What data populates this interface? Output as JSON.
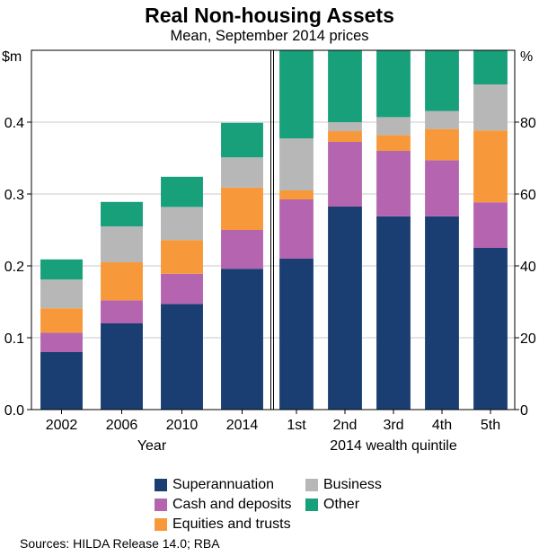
{
  "chart_data": {
    "type": "bar",
    "title": "Real Non-housing Assets",
    "subtitle": "Mean, September 2014 prices",
    "stacked": true,
    "colors": {
      "Superannuation": "#1a3e72",
      "Cash and deposits": "#b565b0",
      "Equities and trusts": "#f7993a",
      "Business": "#b7b7b7",
      "Other": "#18a07a"
    },
    "legend_order": [
      "Superannuation",
      "Business",
      "Cash and deposits",
      "Other",
      "Equities and trusts"
    ],
    "panels": [
      {
        "name": "year",
        "xlabel": "Year",
        "ylabel": "$m",
        "y_axis_side": "left",
        "ylim": [
          0,
          0.5
        ],
        "yticks": [
          "0.0",
          "0.1",
          "0.2",
          "0.3",
          "0.4"
        ],
        "categories": [
          "2002",
          "2006",
          "2010",
          "2014"
        ],
        "series": [
          {
            "name": "Superannuation",
            "values": [
              0.08,
              0.12,
              0.147,
              0.196
            ]
          },
          {
            "name": "Cash and deposits",
            "values": [
              0.027,
              0.032,
              0.042,
              0.054
            ]
          },
          {
            "name": "Equities and trusts",
            "values": [
              0.034,
              0.053,
              0.047,
              0.059
            ]
          },
          {
            "name": "Business",
            "values": [
              0.04,
              0.05,
              0.046,
              0.042
            ]
          },
          {
            "name": "Other",
            "values": [
              0.028,
              0.034,
              0.042,
              0.048
            ]
          }
        ]
      },
      {
        "name": "quintile",
        "xlabel": "2014 wealth quintile",
        "ylabel": "%",
        "y_axis_side": "right",
        "ylim": [
          0,
          100
        ],
        "yticks": [
          "0",
          "20",
          "40",
          "60",
          "80"
        ],
        "categories": [
          "1st",
          "2nd",
          "3rd",
          "4th",
          "5th"
        ],
        "series": [
          {
            "name": "Superannuation",
            "values": [
              42,
              56.5,
              53.8,
              53.8,
              45
            ]
          },
          {
            "name": "Cash and deposits",
            "values": [
              16.5,
              18,
              18.2,
              15.6,
              12.7
            ]
          },
          {
            "name": "Equities and trusts",
            "values": [
              2.5,
              3,
              4.4,
              8.7,
              20
            ]
          },
          {
            "name": "Business",
            "values": [
              14.5,
              2.5,
              5,
              5,
              12.8
            ]
          },
          {
            "name": "Other",
            "values": [
              24.5,
              20,
              18.6,
              16.9,
              9.5
            ]
          }
        ]
      }
    ]
  },
  "source": "Sources:  HILDA Release 14.0; RBA"
}
